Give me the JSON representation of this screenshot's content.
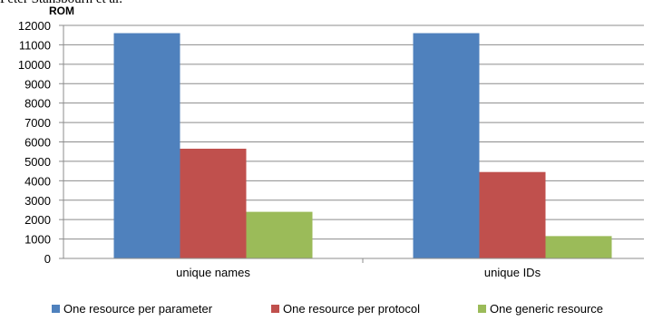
{
  "cut_text": "Peter Stansbourn et al.",
  "chart_data": {
    "type": "bar",
    "title": "ROM",
    "categories": [
      "unique names",
      "unique IDs"
    ],
    "ylim": [
      0,
      12000
    ],
    "ytick_step": 1000,
    "grid": true,
    "legend_position": "bottom",
    "series": [
      {
        "name": "One resource per parameter",
        "color": "#4F81BD",
        "values": [
          11600,
          11600
        ]
      },
      {
        "name": "One resource per protocol",
        "color": "#C0504D",
        "values": [
          5650,
          4450
        ]
      },
      {
        "name": "One generic resource",
        "color": "#9BBB59",
        "values": [
          2400,
          1150
        ]
      }
    ]
  }
}
